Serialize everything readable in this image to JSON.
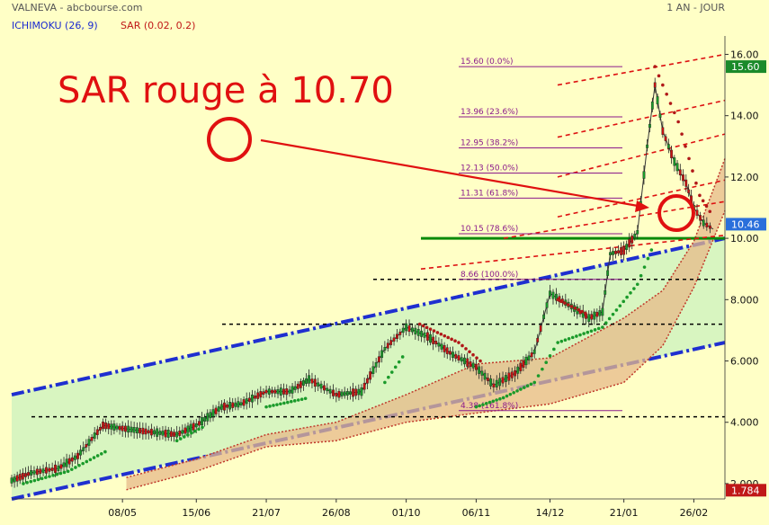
{
  "header": {
    "source": "VALNEVA - abcbourse.com",
    "period": "1 AN - JOUR",
    "ichimoku_label": "ICHIMOKU (26, 9)",
    "sar_label": "SAR (0.02, 0.2)"
  },
  "annotation": {
    "text": "SAR rouge à 10.70"
  },
  "colors": {
    "background": "#ffffc6",
    "channel_fill": "#d8f5c0",
    "channel_line": "#1f2fd0",
    "cloud_fill": "#e7b98a",
    "sar_up": "#1a9a2a",
    "sar_down": "#b01818",
    "annotation": "#e01010",
    "fib_line": "#8b1a8b",
    "support_line": "#0a8a0a",
    "last_badge": "#2a6fdb",
    "max_badge": "#1a8a2a",
    "min_badge": "#c01818"
  },
  "chart_data": {
    "type": "candlestick",
    "title": "VALNEVA",
    "ylim": [
      1.5,
      16.6
    ],
    "yticks": [
      "16.00",
      "14.00",
      "12.00",
      "10.00",
      "8.000",
      "6.000",
      "4.000",
      "2.000"
    ],
    "ytick_values": [
      16,
      14,
      12,
      10,
      8,
      6,
      4,
      2
    ],
    "xticks": [
      "08/05",
      "15/06",
      "21/07",
      "26/08",
      "01/10",
      "06/11",
      "14/12",
      "21/01",
      "26/02"
    ],
    "x_range": [
      "2021-03-12",
      "2022-03-14"
    ],
    "badges": {
      "max": "15.60",
      "last": "10.46",
      "min": "1.784"
    },
    "fibonacci": [
      {
        "label": "15.60  (0.0%)",
        "value": 15.6
      },
      {
        "label": "13.96  (23.6%)",
        "value": 13.96
      },
      {
        "label": "12.95  (38.2%)",
        "value": 12.95
      },
      {
        "label": "12.13  (50.0%)",
        "value": 12.13
      },
      {
        "label": "11.31  (61.8%)",
        "value": 11.31
      },
      {
        "label": "10.15  (78.6%)",
        "value": 10.15
      },
      {
        "label": "8.66  (100.0%)",
        "value": 8.66
      },
      {
        "label": "4.38  (161.8%)",
        "value": 4.38
      }
    ],
    "support_levels": [
      10.0,
      8.66,
      7.2,
      4.18
    ],
    "price_path": [
      [
        "2021-03-12",
        2.1
      ],
      [
        "2021-03-22",
        2.35
      ],
      [
        "2021-04-05",
        2.5
      ],
      [
        "2021-04-15",
        2.9
      ],
      [
        "2021-04-28",
        3.9
      ],
      [
        "2021-05-08",
        3.8
      ],
      [
        "2021-05-20",
        3.7
      ],
      [
        "2021-06-05",
        3.6
      ],
      [
        "2021-06-15",
        3.9
      ],
      [
        "2021-06-28",
        4.5
      ],
      [
        "2021-07-08",
        4.6
      ],
      [
        "2021-07-21",
        5.0
      ],
      [
        "2021-08-02",
        5.0
      ],
      [
        "2021-08-12",
        5.4
      ],
      [
        "2021-08-26",
        4.9
      ],
      [
        "2021-09-08",
        5.0
      ],
      [
        "2021-09-20",
        6.4
      ],
      [
        "2021-10-01",
        7.1
      ],
      [
        "2021-10-12",
        6.8
      ],
      [
        "2021-10-25",
        6.2
      ],
      [
        "2021-11-06",
        5.8
      ],
      [
        "2021-11-15",
        5.2
      ],
      [
        "2021-11-26",
        5.6
      ],
      [
        "2021-12-06",
        6.3
      ],
      [
        "2021-12-14",
        8.2
      ],
      [
        "2021-12-22",
        7.9
      ],
      [
        "2022-01-03",
        7.4
      ],
      [
        "2022-01-10",
        7.6
      ],
      [
        "2022-01-14",
        9.5
      ],
      [
        "2022-01-21",
        9.6
      ],
      [
        "2022-01-28",
        10.2
      ],
      [
        "2022-02-02",
        13.0
      ],
      [
        "2022-02-06",
        15.0
      ],
      [
        "2022-02-10",
        13.5
      ],
      [
        "2022-02-16",
        12.5
      ],
      [
        "2022-02-22",
        11.8
      ],
      [
        "2022-02-26",
        11.0
      ],
      [
        "2022-03-03",
        10.5
      ],
      [
        "2022-03-08",
        10.3
      ]
    ],
    "sar_up": [
      [
        "2021-03-18",
        2.0
      ],
      [
        "2021-04-10",
        2.4
      ],
      [
        "2021-05-01",
        3.1
      ],
      [
        "2021-06-05",
        3.4
      ],
      [
        "2021-06-20",
        3.9
      ],
      [
        "2021-07-21",
        4.5
      ],
      [
        "2021-08-12",
        4.8
      ],
      [
        "2021-09-20",
        5.3
      ],
      [
        "2021-10-01",
        6.3
      ],
      [
        "2021-11-06",
        4.5
      ],
      [
        "2021-11-20",
        4.8
      ],
      [
        "2021-12-06",
        5.3
      ],
      [
        "2021-12-18",
        6.6
      ],
      [
        "2022-01-10",
        7.1
      ],
      [
        "2022-01-28",
        8.5
      ],
      [
        "2022-02-06",
        9.9
      ]
    ],
    "sar_down": [
      [
        "2021-10-08",
        7.2
      ],
      [
        "2021-10-28",
        6.6
      ],
      [
        "2021-11-10",
        5.9
      ],
      [
        "2021-12-18",
        8.0
      ],
      [
        "2022-01-03",
        7.5
      ],
      [
        "2022-02-06",
        15.6
      ],
      [
        "2022-02-18",
        13.8
      ],
      [
        "2022-03-01",
        11.4
      ],
      [
        "2022-03-08",
        10.7
      ]
    ],
    "cloud_top": [
      [
        "2021-05-10",
        2.2
      ],
      [
        "2021-06-15",
        2.8
      ],
      [
        "2021-07-21",
        3.6
      ],
      [
        "2021-08-26",
        4.0
      ],
      [
        "2021-10-01",
        4.9
      ],
      [
        "2021-11-06",
        5.9
      ],
      [
        "2021-12-14",
        6.1
      ],
      [
        "2022-01-21",
        7.4
      ],
      [
        "2022-02-10",
        8.3
      ],
      [
        "2022-02-26",
        9.9
      ],
      [
        "2022-03-14",
        12.6
      ]
    ],
    "cloud_bottom": [
      [
        "2021-05-10",
        1.8
      ],
      [
        "2021-06-15",
        2.4
      ],
      [
        "2021-07-21",
        3.2
      ],
      [
        "2021-08-26",
        3.4
      ],
      [
        "2021-10-01",
        4.0
      ],
      [
        "2021-11-06",
        4.3
      ],
      [
        "2021-12-14",
        4.6
      ],
      [
        "2022-01-21",
        5.3
      ],
      [
        "2022-02-10",
        6.5
      ],
      [
        "2022-02-26",
        8.4
      ],
      [
        "2022-03-14",
        10.9
      ]
    ]
  }
}
